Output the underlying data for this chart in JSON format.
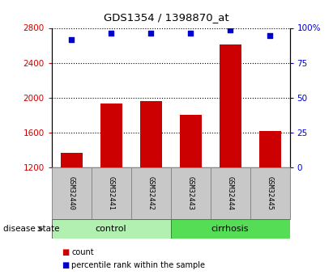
{
  "title": "GDS1354 / 1398870_at",
  "categories": [
    "GSM32440",
    "GSM32441",
    "GSM32442",
    "GSM32443",
    "GSM32444",
    "GSM32445"
  ],
  "bar_values": [
    1370,
    1930,
    1960,
    1800,
    2610,
    1615
  ],
  "percentile_values": [
    91.5,
    96.5,
    96.5,
    96.5,
    98.5,
    94.5
  ],
  "bar_color": "#cc0000",
  "dot_color": "#0000cc",
  "ylim_left": [
    1200,
    2800
  ],
  "ylim_right": [
    0,
    100
  ],
  "yticks_left": [
    1200,
    1600,
    2000,
    2400,
    2800
  ],
  "yticks_right": [
    0,
    25,
    50,
    75,
    100
  ],
  "right_tick_labels": [
    "0",
    "25",
    "50",
    "75",
    "100%"
  ],
  "legend_count_label": "count",
  "legend_percentile_label": "percentile rank within the sample",
  "disease_state_label": "disease state",
  "light_green": "#b2f0b2",
  "medium_green": "#55dd55",
  "gray_bg": "#c8c8c8",
  "bg_white": "#ffffff"
}
